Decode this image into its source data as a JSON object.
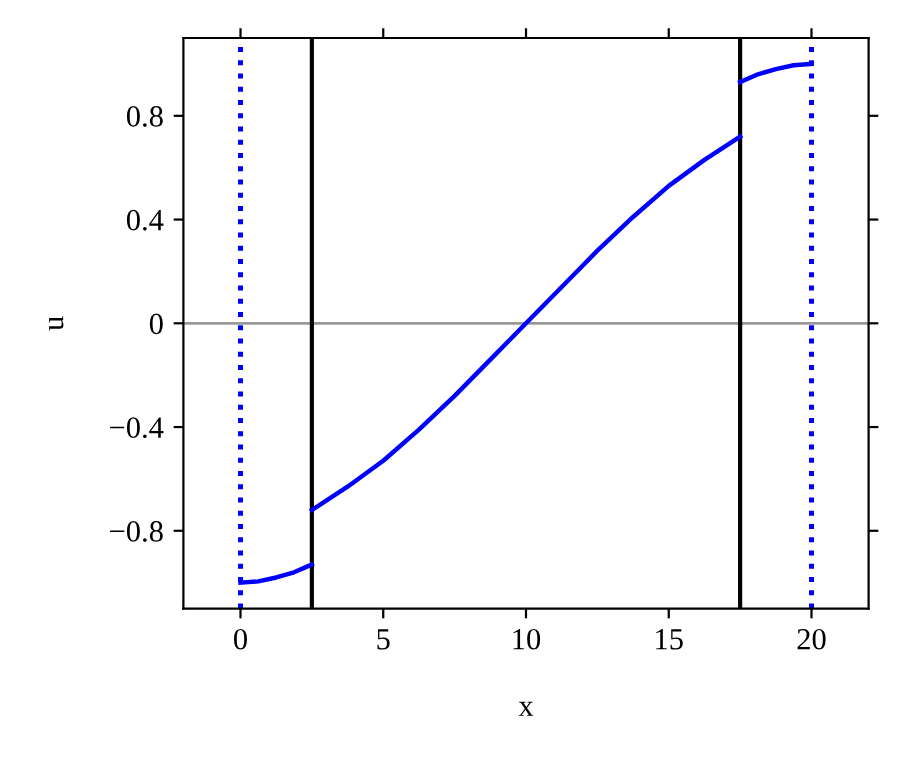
{
  "chart_data": {
    "type": "line",
    "xlabel": "x",
    "ylabel": "u",
    "xlim": [
      -2,
      22
    ],
    "ylim": [
      -1.1,
      1.1
    ],
    "xticks": [
      0,
      5,
      10,
      15,
      20
    ],
    "yticks": [
      -0.8,
      -0.4,
      0,
      0.4,
      0.8
    ],
    "grid": false,
    "legend": false,
    "marker": "none",
    "line_style": "solid",
    "series": [
      {
        "color": "#0000ff",
        "x": [
          0,
          0.625,
          1.25,
          1.875,
          2.5
        ],
        "values": [
          -1.0,
          -0.995,
          -0.98,
          -0.96,
          -0.93
        ]
      },
      {
        "color": "#0000ff",
        "x": [
          2.5,
          3.75,
          5,
          6.25,
          7.5,
          8.75,
          10,
          11.25,
          12.5,
          13.75,
          15,
          16.25,
          17.5
        ],
        "values": [
          -0.72,
          -0.63,
          -0.53,
          -0.41,
          -0.28,
          -0.14,
          0,
          0.14,
          0.28,
          0.41,
          0.53,
          0.63,
          0.72
        ]
      },
      {
        "color": "#0000ff",
        "x": [
          17.5,
          18.125,
          18.75,
          19.375,
          20
        ],
        "values": [
          0.93,
          0.96,
          0.98,
          0.995,
          1.0
        ]
      }
    ],
    "ref_lines": [
      {
        "axis": "y",
        "value": 0,
        "color": "#999999",
        "line_style": "solid"
      },
      {
        "axis": "x",
        "value": 0,
        "color": "#0000ff",
        "line_style": "dotted"
      },
      {
        "axis": "x",
        "value": 2.5,
        "color": "#000000",
        "line_style": "solid"
      },
      {
        "axis": "x",
        "value": 17.5,
        "color": "#000000",
        "line_style": "solid"
      },
      {
        "axis": "x",
        "value": 20,
        "color": "#0000ff",
        "line_style": "dotted"
      }
    ]
  }
}
